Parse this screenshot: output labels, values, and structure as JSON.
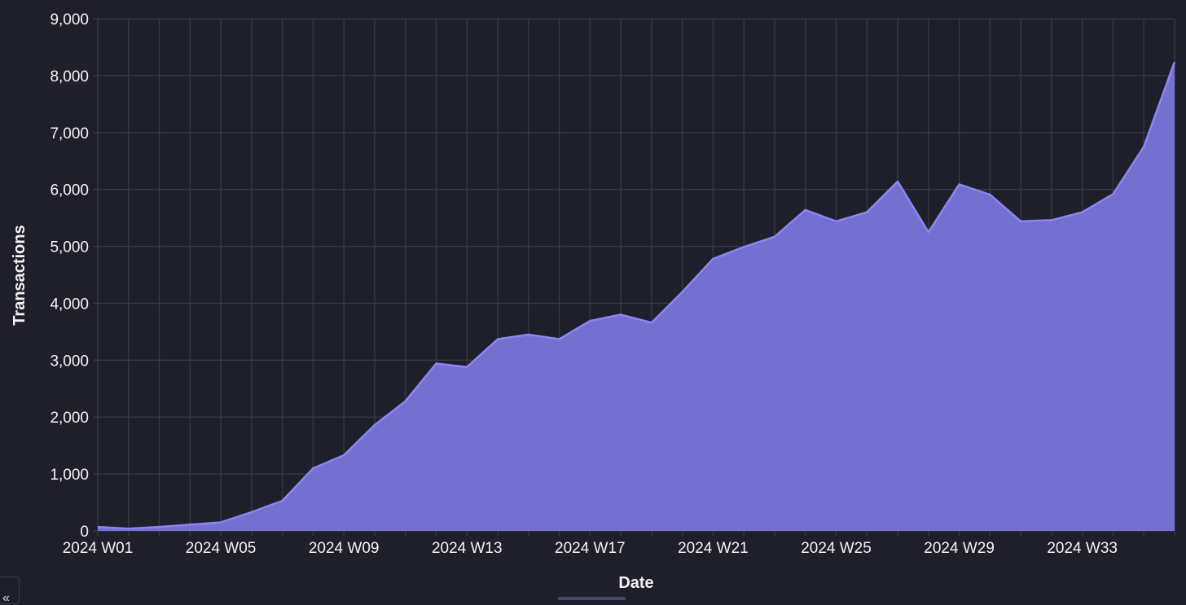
{
  "chart_data": {
    "type": "area",
    "title": "",
    "xlabel": "Date",
    "ylabel": "Transactions",
    "ylim": [
      0,
      9000
    ],
    "yticks": [
      0,
      1000,
      2000,
      3000,
      4000,
      5000,
      6000,
      7000,
      8000,
      9000
    ],
    "ytick_labels": [
      "0",
      "1,000",
      "2,000",
      "3,000",
      "4,000",
      "5,000",
      "6,000",
      "7,000",
      "8,000",
      "9,000"
    ],
    "xtick_labels": [
      "2024 W01",
      "2024 W05",
      "2024 W09",
      "2024 W13",
      "2024 W17",
      "2024 W21",
      "2024 W25",
      "2024 W29",
      "2024 W33"
    ],
    "grid": true,
    "legend": null,
    "categories": [
      "2024 W01",
      "2024 W02",
      "2024 W03",
      "2024 W04",
      "2024 W05",
      "2024 W06",
      "2024 W07",
      "2024 W08",
      "2024 W09",
      "2024 W10",
      "2024 W11",
      "2024 W12",
      "2024 W13",
      "2024 W14",
      "2024 W15",
      "2024 W16",
      "2024 W17",
      "2024 W18",
      "2024 W19",
      "2024 W20",
      "2024 W21",
      "2024 W22",
      "2024 W23",
      "2024 W24",
      "2024 W25",
      "2024 W26",
      "2024 W27",
      "2024 W28",
      "2024 W29",
      "2024 W30",
      "2024 W31",
      "2024 W32",
      "2024 W33",
      "2024 W34",
      "2024 W35",
      "2024 W36"
    ],
    "series": [
      {
        "name": "Transactions",
        "values": [
          70,
          40,
          70,
          110,
          150,
          330,
          530,
          1100,
          1330,
          1860,
          2280,
          2940,
          2880,
          3370,
          3450,
          3370,
          3690,
          3800,
          3660,
          4200,
          4780,
          4990,
          5170,
          5640,
          5440,
          5600,
          6140,
          5250,
          6090,
          5910,
          5440,
          5460,
          5600,
          5920,
          6750,
          8240
        ]
      }
    ],
    "colors": {
      "fill": "#7370cf",
      "line": "#8987f2",
      "background": "#1f1f2b",
      "grid": "#393948",
      "text": "#f2f2f5"
    }
  },
  "ui": {
    "collapse_button_label": "«"
  }
}
